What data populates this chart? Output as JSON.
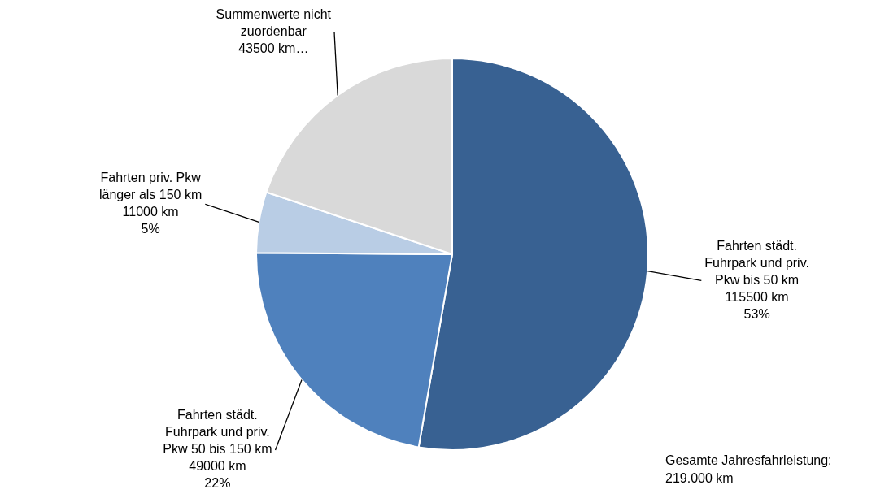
{
  "chart_data": {
    "type": "pie",
    "categories": [
      "Fahrten städt. Fuhrpark und priv. Pkw bis 50 km",
      "Fahrten städt. Fuhrpark und priv. Pkw 50 bis 150 km",
      "Fahrten priv. Pkw länger als 150 km",
      "Summenwerte nicht zuordenbar"
    ],
    "values": [
      115500,
      49000,
      11000,
      43500
    ],
    "colors": [
      "#386192",
      "#4f81bd",
      "#b9cde5",
      "#d9d9d9"
    ],
    "value_labels": [
      "115500 km\n53%",
      "49000 km\n22%",
      "11000 km\n5%",
      "43500 km…"
    ],
    "annotations": [
      "Gesamte Jahresfahrleistung: 219.000 km"
    ],
    "legend": false
  }
}
